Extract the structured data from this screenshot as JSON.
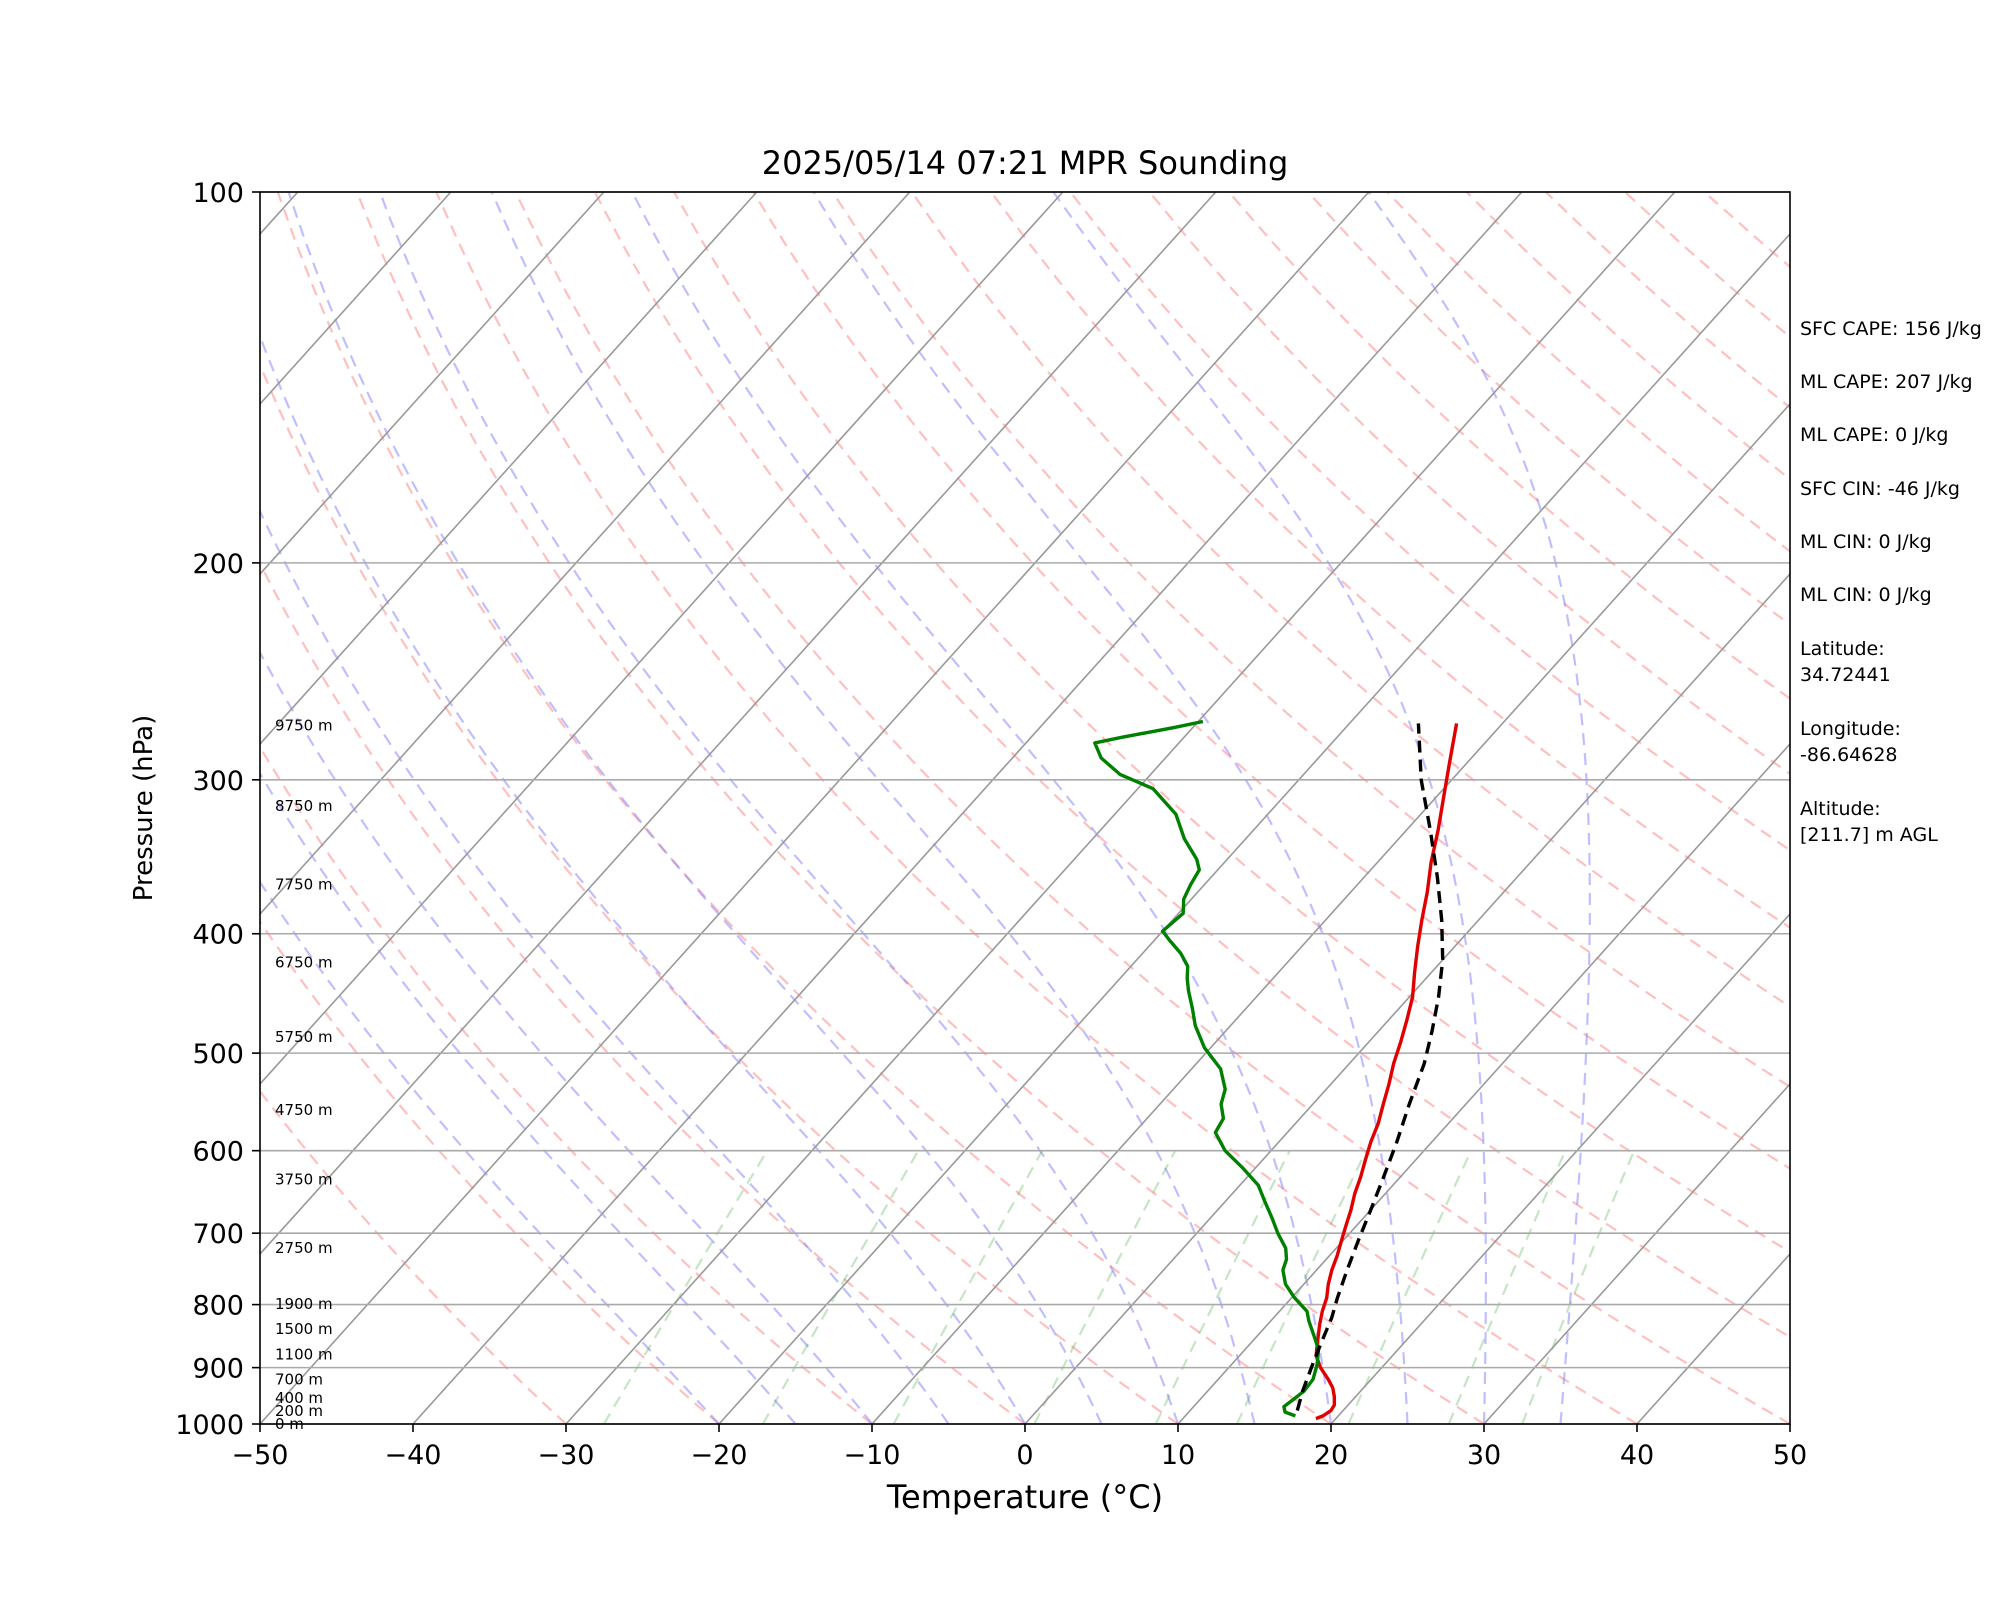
{
  "chart_data": {
    "type": "line",
    "subtype": "skew-T log-p sounding",
    "title": "2025/05/14 07:21 MPR Sounding",
    "xlabel": "Temperature (°C)",
    "ylabel": "Pressure (hPa)",
    "xlim": [
      -50,
      50
    ],
    "ylim": [
      1000,
      100
    ],
    "y_scale": "log",
    "x_ticks": [
      "−50",
      "−40",
      "−30",
      "−20",
      "−10",
      "0",
      "10",
      "20",
      "30",
      "40",
      "50"
    ],
    "y_ticks": [
      "100",
      "200",
      "300",
      "400",
      "500",
      "600",
      "700",
      "800",
      "900",
      "1000"
    ],
    "grid": true,
    "height_labels": [
      {
        "p": 1000,
        "label": "0 m"
      },
      {
        "p": 976,
        "label": "200 m"
      },
      {
        "p": 953,
        "label": "400 m"
      },
      {
        "p": 920,
        "label": "700 m"
      },
      {
        "p": 878,
        "label": "1100 m"
      },
      {
        "p": 837,
        "label": "1500 m"
      },
      {
        "p": 799,
        "label": "1900 m"
      },
      {
        "p": 720,
        "label": "2750 m"
      },
      {
        "p": 633,
        "label": "3750 m"
      },
      {
        "p": 556,
        "label": "4750 m"
      },
      {
        "p": 485,
        "label": "5750 m"
      },
      {
        "p": 422,
        "label": "6750 m"
      },
      {
        "p": 365,
        "label": "7750 m"
      },
      {
        "p": 315,
        "label": "8750 m"
      },
      {
        "p": 271,
        "label": "9750 m"
      }
    ],
    "series": [
      {
        "color": "#e00000",
        "points": [
          [
            18.7,
            990
          ],
          [
            19.0,
            985
          ],
          [
            19.2,
            975
          ],
          [
            19.1,
            965
          ],
          [
            18.6,
            950
          ],
          [
            18.0,
            935
          ],
          [
            17.2,
            920
          ],
          [
            16.0,
            900
          ],
          [
            15.0,
            880
          ],
          [
            14.2,
            855
          ],
          [
            13.4,
            830
          ],
          [
            12.8,
            810
          ],
          [
            12.3,
            790
          ],
          [
            11.6,
            770
          ],
          [
            11.0,
            750
          ],
          [
            10.5,
            730
          ],
          [
            9.9,
            710
          ],
          [
            9.3,
            690
          ],
          [
            8.7,
            670
          ],
          [
            8.0,
            650
          ],
          [
            7.4,
            630
          ],
          [
            6.7,
            610
          ],
          [
            6.0,
            590
          ],
          [
            5.4,
            570
          ],
          [
            4.6,
            550
          ],
          [
            3.8,
            530
          ],
          [
            2.9,
            510
          ],
          [
            2.1,
            490
          ],
          [
            1.2,
            470
          ],
          [
            0.2,
            450
          ],
          [
            -1.1,
            430
          ],
          [
            -2.4,
            410
          ],
          [
            -3.7,
            390
          ],
          [
            -5.0,
            370
          ],
          [
            -6.5,
            350
          ],
          [
            -7.9,
            330
          ],
          [
            -9.5,
            310
          ],
          [
            -11.2,
            290
          ],
          [
            -13.0,
            270
          ]
        ]
      },
      {
        "color": "#008000",
        "points": [
          [
            17.2,
            985
          ],
          [
            16.3,
            978
          ],
          [
            15.9,
            968
          ],
          [
            16.1,
            955
          ],
          [
            16.3,
            940
          ],
          [
            16.2,
            920
          ],
          [
            15.6,
            895
          ],
          [
            14.8,
            870
          ],
          [
            13.8,
            850
          ],
          [
            12.5,
            825
          ],
          [
            11.8,
            810
          ],
          [
            10.2,
            790
          ],
          [
            8.8,
            770
          ],
          [
            7.8,
            750
          ],
          [
            7.4,
            735
          ],
          [
            6.7,
            720
          ],
          [
            5.3,
            700
          ],
          [
            4.0,
            680
          ],
          [
            2.6,
            660
          ],
          [
            1.2,
            640
          ],
          [
            -0.8,
            620
          ],
          [
            -3.0,
            600
          ],
          [
            -4.7,
            580
          ],
          [
            -5.0,
            565
          ],
          [
            -6.0,
            550
          ],
          [
            -6.6,
            535
          ],
          [
            -8.1,
            515
          ],
          [
            -10.4,
            495
          ],
          [
            -12.3,
            475
          ],
          [
            -13.5,
            460
          ],
          [
            -14.8,
            445
          ],
          [
            -15.6,
            435
          ],
          [
            -16.3,
            425
          ],
          [
            -17.5,
            415
          ],
          [
            -19.0,
            405
          ],
          [
            -20.0,
            398
          ],
          [
            -19.7,
            385
          ],
          [
            -20.5,
            375
          ],
          [
            -20.9,
            365
          ],
          [
            -21.2,
            355
          ],
          [
            -22.0,
            348
          ],
          [
            -24.0,
            335
          ],
          [
            -26.0,
            320
          ],
          [
            -29.0,
            305
          ],
          [
            -32.0,
            297
          ],
          [
            -34.2,
            288
          ],
          [
            -35.5,
            280
          ],
          [
            -34.0,
            277
          ],
          [
            -31.2,
            272
          ],
          [
            -29.7,
            269
          ]
        ]
      },
      {
        "color": "#000000",
        "dashed": true,
        "points": [
          [
            17.0,
            975
          ],
          [
            16.2,
            940
          ],
          [
            15.4,
            900
          ],
          [
            14.6,
            860
          ],
          [
            13.8,
            820
          ],
          [
            13.0,
            790
          ],
          [
            12.0,
            750
          ],
          [
            11.0,
            710
          ],
          [
            10.0,
            670
          ],
          [
            8.9,
            630
          ],
          [
            7.7,
            590
          ],
          [
            6.3,
            550
          ],
          [
            4.9,
            510
          ],
          [
            3.5,
            480
          ],
          [
            1.9,
            450
          ],
          [
            0.0,
            420
          ],
          [
            -2.4,
            390
          ],
          [
            -5.2,
            360
          ],
          [
            -8.4,
            330
          ],
          [
            -12.0,
            300
          ],
          [
            -15.5,
            270
          ]
        ]
      }
    ],
    "annotations": [
      "SFC CAPE: 156 J/kg",
      "ML CAPE: 207 J/kg",
      "ML CAPE: 0 J/kg",
      "SFC CIN: -46 J/kg",
      "ML CIN: 0 J/kg",
      "ML CIN: 0 J/kg",
      "Latitude:\n34.72441",
      "Longitude:\n-86.64628",
      "Altitude:\n[211.7] m AGL"
    ]
  }
}
